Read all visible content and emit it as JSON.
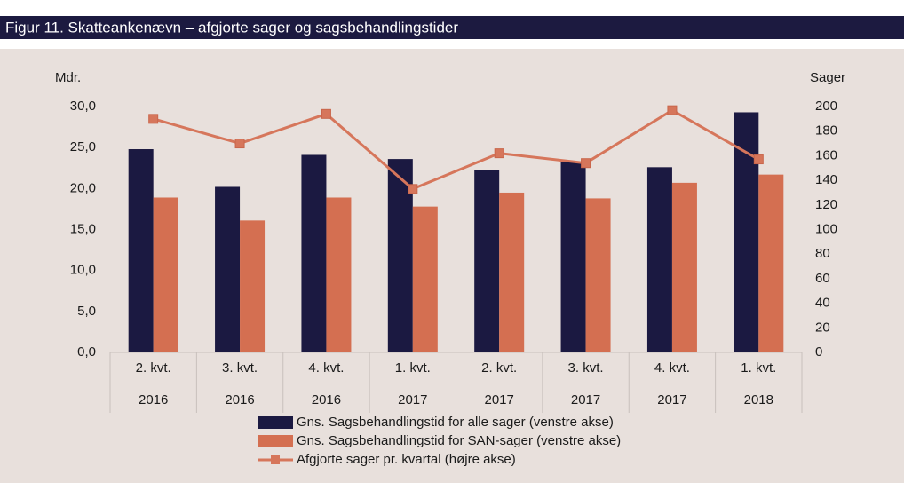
{
  "chart_data": {
    "type": "bar",
    "title": "Figur 11. Skatteankenævn – afgjorte sager og sagsbehandlingstider",
    "y_label": "Mdr.",
    "y2_label": "Sager",
    "categories": [
      [
        "2. kvt.",
        "2016"
      ],
      [
        "3. kvt.",
        "2016"
      ],
      [
        "4. kvt.",
        "2016"
      ],
      [
        "1. kvt.",
        "2017"
      ],
      [
        "2. kvt.",
        "2017"
      ],
      [
        "3. kvt.",
        "2017"
      ],
      [
        "4. kvt.",
        "2017"
      ],
      [
        "1. kvt.",
        "2018"
      ]
    ],
    "series": [
      {
        "name": "Gns. Sagsbehandlingstid for alle sager (venstre akse)",
        "type": "bar",
        "color": "#1b1941",
        "values": [
          24.8,
          20.2,
          24.1,
          23.6,
          22.3,
          23.2,
          22.6,
          29.3
        ]
      },
      {
        "name": "Gns. Sagsbehandlingstid for SAN-sager (venstre akse)",
        "type": "bar",
        "color": "#d46f51",
        "values": [
          18.9,
          16.1,
          18.9,
          17.8,
          19.5,
          18.8,
          20.7,
          21.7
        ]
      },
      {
        "name": "Afgjorte sager pr. kvartal (højre akse)",
        "type": "line",
        "axis": "y2",
        "color": "#d6765b",
        "values": [
          190,
          170,
          194,
          133,
          162,
          154,
          197,
          157
        ]
      }
    ],
    "ylim": [
      0,
      30
    ],
    "yticks": [
      {
        "value": 0,
        "label": "0,0"
      },
      {
        "value": 5,
        "label": "5,0"
      },
      {
        "value": 10,
        "label": "10,0"
      },
      {
        "value": 15,
        "label": "15,0"
      },
      {
        "value": 20,
        "label": "20,0"
      },
      {
        "value": 25,
        "label": "25,0"
      },
      {
        "value": 30,
        "label": "30,0"
      }
    ],
    "y2lim": [
      0,
      200
    ],
    "y2ticks": [
      0,
      20,
      40,
      60,
      80,
      100,
      120,
      140,
      160,
      180,
      200
    ],
    "legend": "bottom"
  }
}
